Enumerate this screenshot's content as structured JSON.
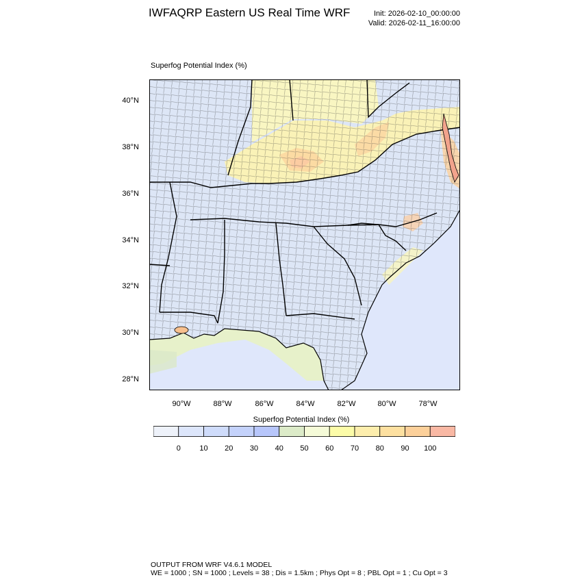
{
  "header": {
    "title": "IWFAQRP Eastern US Real Time WRF",
    "init": "Init: 2026-02-10_00:00:00",
    "valid": "Valid: 2026-02-11_16:00:00"
  },
  "plot": {
    "label": "Superfog Potential Index   (%)"
  },
  "axes": {
    "lat_labels": [
      "40°N",
      "38°N",
      "36°N",
      "34°N",
      "32°N",
      "30°N",
      "28°N"
    ],
    "lon_labels": [
      "90°W",
      "88°W",
      "86°W",
      "84°W",
      "82°W",
      "80°W",
      "78°W"
    ]
  },
  "colorbar": {
    "title": "Superfog Potential Index  (%)",
    "labels": [
      "0",
      "10",
      "20",
      "30",
      "40",
      "50",
      "60",
      "70",
      "80",
      "90",
      "100"
    ],
    "colors": [
      "#eef2fa",
      "#dde6fb",
      "#cfdcfb",
      "#c4d2fb",
      "#b7c6fb",
      "#dcebc8",
      "#f5fbd8",
      "#fcfca8",
      "#fdeead",
      "#fde0a0",
      "#fcd09a",
      "#f9b8a4"
    ]
  },
  "footer": {
    "line1": "OUTPUT FROM WRF V4.6.1 MODEL",
    "line2": "WE = 1000 ; SN = 1000 ; Levels = 38 ; Dis = 1.5km ; Phys Opt = 8 ; PBL Opt = 1 ; Cu Opt = 3"
  }
}
